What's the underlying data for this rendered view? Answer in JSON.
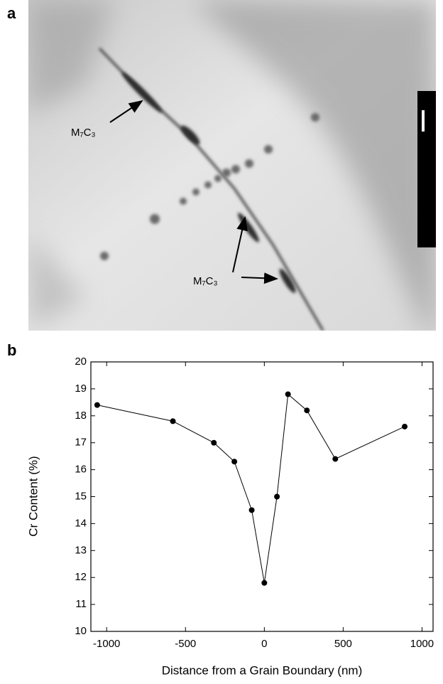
{
  "panel_a": {
    "label": "a",
    "annotations": [
      "M₇C₃",
      "M₇C₃"
    ]
  },
  "chart_data": {
    "type": "line",
    "panel_label": "b",
    "x_label": "Distance from a Grain Boundary (nm)",
    "y_label": "Cr Content (%)",
    "x": [
      -1060,
      -580,
      -320,
      -190,
      -80,
      0,
      80,
      150,
      270,
      450,
      890
    ],
    "values": [
      18.4,
      17.8,
      17.0,
      16.3,
      14.5,
      11.8,
      15.0,
      18.8,
      18.2,
      16.4,
      17.6
    ],
    "color": "#000000",
    "xlim": [
      -1100,
      1070
    ],
    "xticks": [
      -1000,
      -500,
      0,
      500,
      1000
    ],
    "ylim": [
      10,
      20
    ],
    "yticks": [
      10,
      11,
      12,
      13,
      14,
      15,
      16,
      17,
      18,
      19,
      20
    ]
  }
}
